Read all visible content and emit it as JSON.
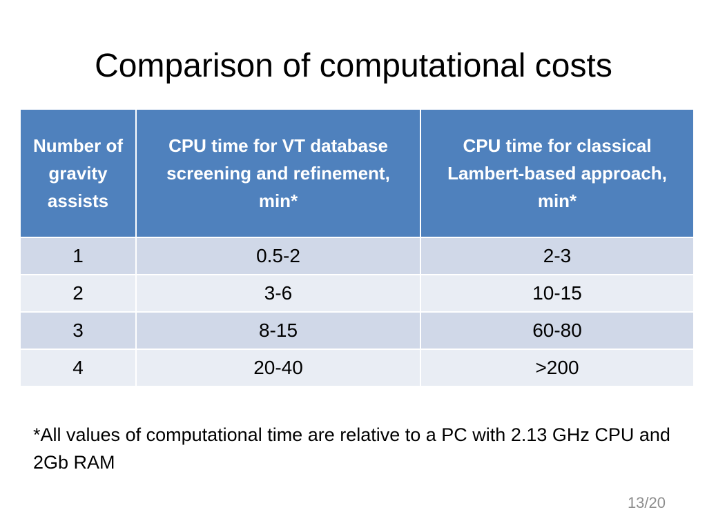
{
  "slide": {
    "title": "Comparison of computational costs",
    "footnote": "*All values of computational time are relative to a PC with 2.13 GHz CPU and 2Gb RAM",
    "slide_number": "13/20"
  },
  "table": {
    "headers": [
      "Number of gravity assists",
      "CPU time for VT database screening and refinement, min*",
      "CPU time for classical Lambert-based approach, min*"
    ],
    "rows": [
      [
        "1",
        "0.5-2",
        "2-3"
      ],
      [
        "2",
        "3-6",
        "10-15"
      ],
      [
        "3",
        "8-15",
        "60-80"
      ],
      [
        "4",
        "20-40",
        ">200"
      ]
    ]
  },
  "colors": {
    "header_background": "#4f81bd",
    "band_odd": "#d0d8e8",
    "band_even": "#e9edf4",
    "slide_number": "#8c8c8c"
  }
}
